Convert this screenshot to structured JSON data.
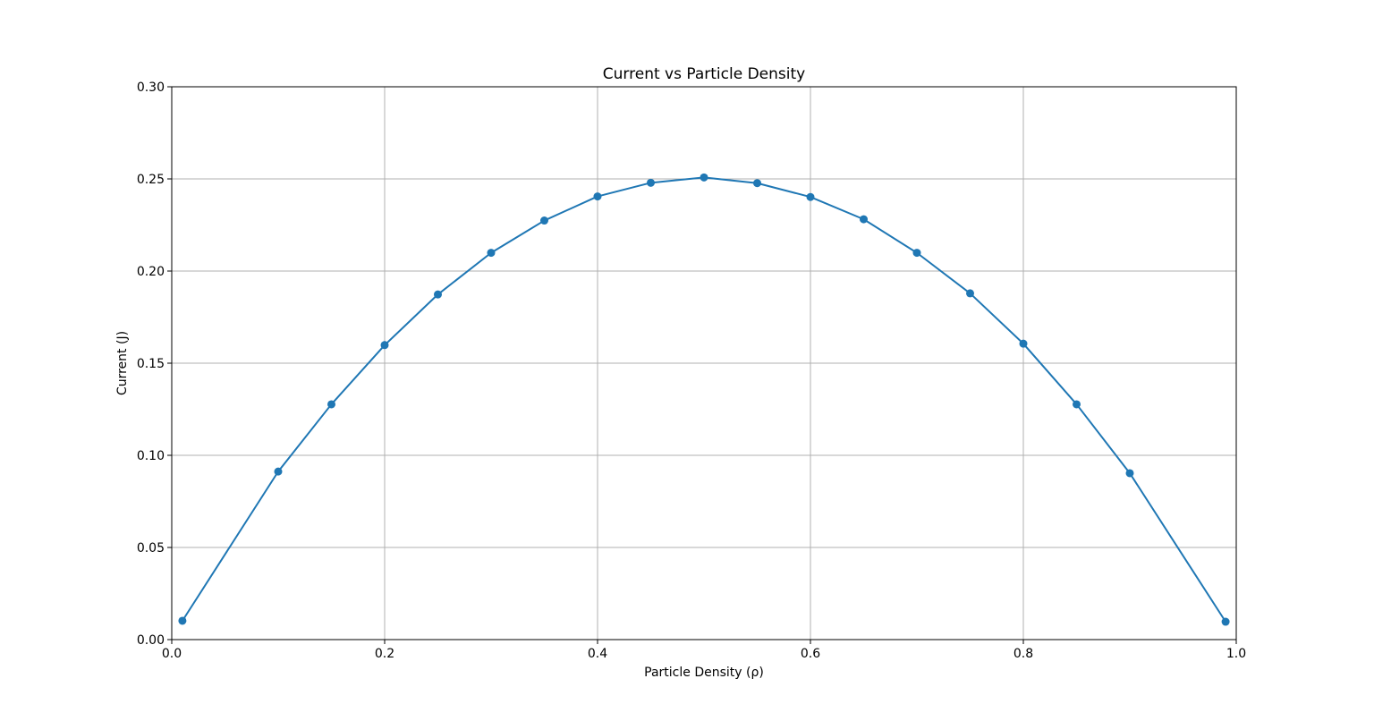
{
  "chart_data": {
    "type": "line",
    "title": "Current vs Particle Density",
    "xlabel": "Particle Density (ρ)",
    "ylabel": "Current (J)",
    "xlim": [
      0.0,
      1.0
    ],
    "ylim": [
      0.0,
      0.3
    ],
    "grid": true,
    "x_ticks": [
      "0.0",
      "0.2",
      "0.4",
      "0.6",
      "0.8",
      "1.0"
    ],
    "y_ticks": [
      "0.00",
      "0.05",
      "0.10",
      "0.15",
      "0.20",
      "0.25",
      "0.30"
    ],
    "series": [
      {
        "color": "#1f77b4",
        "marker": "circle",
        "x": [
          0.01,
          0.1,
          0.15,
          0.2,
          0.25,
          0.3,
          0.35,
          0.4,
          0.45,
          0.5,
          0.55,
          0.6,
          0.65,
          0.7,
          0.75,
          0.8,
          0.85,
          0.9,
          0.99
        ],
        "y": [
          0.0102,
          0.0912,
          0.1277,
          0.1598,
          0.1873,
          0.2099,
          0.2274,
          0.2405,
          0.2479,
          0.2508,
          0.2477,
          0.2402,
          0.2281,
          0.2099,
          0.1879,
          0.1606,
          0.1277,
          0.0903,
          0.0097
        ]
      }
    ]
  }
}
